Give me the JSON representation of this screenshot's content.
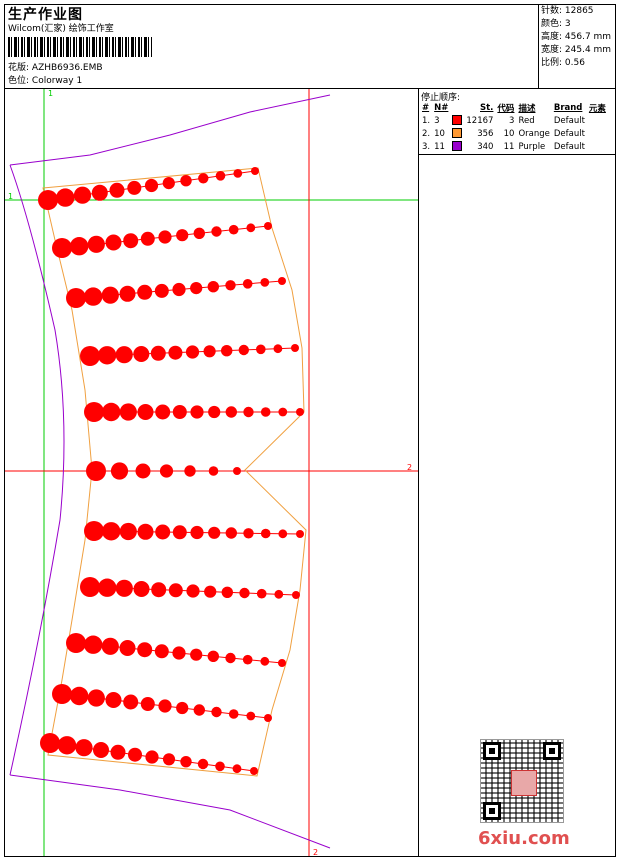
{
  "header": {
    "title": "生产作业图",
    "company": "Wilcom(汇家) 绘饰工作室",
    "design_label": "花版: ",
    "design_value": "AZHB6936.EMB",
    "colorway_label": "色位: ",
    "colorway_value": "Colorway 1"
  },
  "stats": [
    {
      "label": "针数: ",
      "value": "12865"
    },
    {
      "label": "颜色: ",
      "value": "3"
    },
    {
      "label": "高度: ",
      "value": "456.7 mm"
    },
    {
      "label": "宽度: ",
      "value": "245.4 mm"
    },
    {
      "label": "比例: ",
      "value": "0.56"
    }
  ],
  "stop_sequence": {
    "title": "停止顺序:",
    "columns": [
      "#",
      "N#",
      "St.",
      "代码",
      "描述",
      "Brand",
      "元素"
    ],
    "rows": [
      {
        "idx": "1.",
        "n": "3",
        "color": "#ff0000",
        "st": "12167",
        "code": "3",
        "desc": "Red",
        "brand": "Default"
      },
      {
        "idx": "2.",
        "n": "10",
        "color": "#ff9933",
        "st": "356",
        "code": "10",
        "desc": "Orange",
        "brand": "Default"
      },
      {
        "idx": "3.",
        "n": "11",
        "color": "#9900cc",
        "st": "340",
        "code": "11",
        "desc": "Purple",
        "brand": "Default"
      }
    ]
  },
  "guides": {
    "v1_label": "1",
    "h1_label": "1",
    "h2_label": "2",
    "v2_label": "2",
    "green": "#00cc00",
    "red": "#ff0000"
  },
  "watermark": "6xiu.com",
  "colors": {
    "bead": "#ff0000",
    "outline": "#f0a040",
    "purple": "#9900cc"
  }
}
